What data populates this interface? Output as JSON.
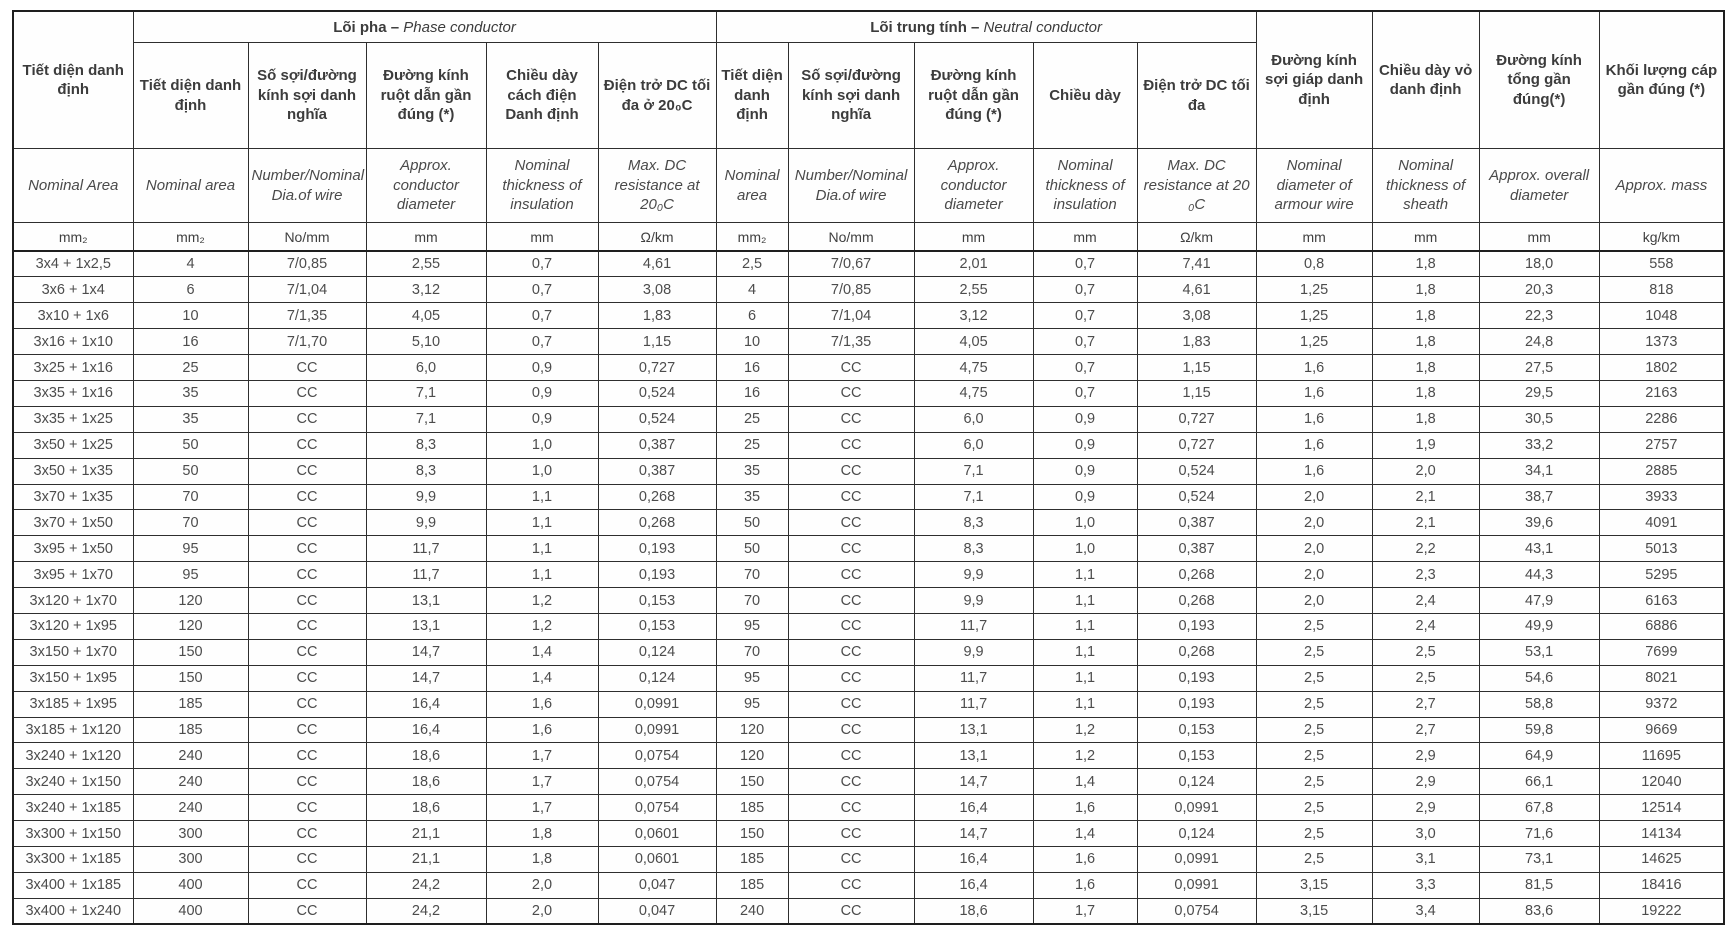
{
  "table": {
    "groups": {
      "phase_bold": "Lõi pha –",
      "phase_italic": "Phase conductor",
      "neutral_bold": "Lõi trung tính –",
      "neutral_italic": "Neutral conductor"
    },
    "columns": [
      {
        "vi": "Tiết diện danh định",
        "en": "Nominal Area",
        "unit": "mm₂"
      },
      {
        "vi": "Tiết diện danh định",
        "en": "Nominal  area",
        "unit": "mm₂"
      },
      {
        "vi": "Số sợi/đường kính sợi danh nghĩa",
        "en": "Number/Nominal Dia.of wire",
        "unit": "No/mm"
      },
      {
        "vi": "Đường kính ruột dẫn gần đúng (*)",
        "en": "Approx. conductor diameter",
        "unit": "mm"
      },
      {
        "vi": "Chiều dày cách điện Danh định",
        "en": "Nominal thickness of insulation",
        "unit": "mm"
      },
      {
        "vi": "Điện trở DC tối đa ở 20₀C",
        "en": "Max. DC resistance at 20₀C",
        "unit": "Ω/km"
      },
      {
        "vi": "Tiết diện danh định",
        "en": "Nominal area",
        "unit": "mm₂"
      },
      {
        "vi": "Số sợi/đường kính sợi danh nghĩa",
        "en": "Number/Nominal Dia.of wire",
        "unit": "No/mm"
      },
      {
        "vi": "Đường kính ruột dẫn gần đúng (*)",
        "en": "Approx. conductor diameter",
        "unit": "mm"
      },
      {
        "vi": "Chiều dày",
        "en": "Nominal thickness of insulation",
        "unit": "mm"
      },
      {
        "vi": "Điện trở DC tối đa",
        "en": "Max. DC resistance at 20 ₀C",
        "unit": "Ω/km"
      },
      {
        "vi": "Đường kính sợi giáp danh định",
        "en": "Nominal diameter of armour wire",
        "unit": "mm"
      },
      {
        "vi": "Chiều dày vỏ danh định",
        "en": "Nominal thickness of sheath",
        "unit": "mm"
      },
      {
        "vi": "Đường kính tổng gần đúng(*)",
        "en": "Approx. overall diameter",
        "unit": "mm"
      },
      {
        "vi": "Khối lượng cáp gần đúng (*)",
        "en": "Approx. mass",
        "unit": "kg/km"
      }
    ],
    "rows": [
      [
        "3x4 + 1x2,5",
        "4",
        "7/0,85",
        "2,55",
        "0,7",
        "4,61",
        "2,5",
        "7/0,67",
        "2,01",
        "0,7",
        "7,41",
        "0,8",
        "1,8",
        "18,0",
        "558"
      ],
      [
        "3x6 + 1x4",
        "6",
        "7/1,04",
        "3,12",
        "0,7",
        "3,08",
        "4",
        "7/0,85",
        "2,55",
        "0,7",
        "4,61",
        "1,25",
        "1,8",
        "20,3",
        "818"
      ],
      [
        "3x10 + 1x6",
        "10",
        "7/1,35",
        "4,05",
        "0,7",
        "1,83",
        "6",
        "7/1,04",
        "3,12",
        "0,7",
        "3,08",
        "1,25",
        "1,8",
        "22,3",
        "1048"
      ],
      [
        "3x16 + 1x10",
        "16",
        "7/1,70",
        "5,10",
        "0,7",
        "1,15",
        "10",
        "7/1,35",
        "4,05",
        "0,7",
        "1,83",
        "1,25",
        "1,8",
        "24,8",
        "1373"
      ],
      [
        "3x25 + 1x16",
        "25",
        "CC",
        "6,0",
        "0,9",
        "0,727",
        "16",
        "CC",
        "4,75",
        "0,7",
        "1,15",
        "1,6",
        "1,8",
        "27,5",
        "1802"
      ],
      [
        "3x35 + 1x16",
        "35",
        "CC",
        "7,1",
        "0,9",
        "0,524",
        "16",
        "CC",
        "4,75",
        "0,7",
        "1,15",
        "1,6",
        "1,8",
        "29,5",
        "2163"
      ],
      [
        "3x35 + 1x25",
        "35",
        "CC",
        "7,1",
        "0,9",
        "0,524",
        "25",
        "CC",
        "6,0",
        "0,9",
        "0,727",
        "1,6",
        "1,8",
        "30,5",
        "2286"
      ],
      [
        "3x50 + 1x25",
        "50",
        "CC",
        "8,3",
        "1,0",
        "0,387",
        "25",
        "CC",
        "6,0",
        "0,9",
        "0,727",
        "1,6",
        "1,9",
        "33,2",
        "2757"
      ],
      [
        "3x50 + 1x35",
        "50",
        "CC",
        "8,3",
        "1,0",
        "0,387",
        "35",
        "CC",
        "7,1",
        "0,9",
        "0,524",
        "1,6",
        "2,0",
        "34,1",
        "2885"
      ],
      [
        "3x70 + 1x35",
        "70",
        "CC",
        "9,9",
        "1,1",
        "0,268",
        "35",
        "CC",
        "7,1",
        "0,9",
        "0,524",
        "2,0",
        "2,1",
        "38,7",
        "3933"
      ],
      [
        "3x70 + 1x50",
        "70",
        "CC",
        "9,9",
        "1,1",
        "0,268",
        "50",
        "CC",
        "8,3",
        "1,0",
        "0,387",
        "2,0",
        "2,1",
        "39,6",
        "4091"
      ],
      [
        "3x95 + 1x50",
        "95",
        "CC",
        "11,7",
        "1,1",
        "0,193",
        "50",
        "CC",
        "8,3",
        "1,0",
        "0,387",
        "2,0",
        "2,2",
        "43,1",
        "5013"
      ],
      [
        "3x95 + 1x70",
        "95",
        "CC",
        "11,7",
        "1,1",
        "0,193",
        "70",
        "CC",
        "9,9",
        "1,1",
        "0,268",
        "2,0",
        "2,3",
        "44,3",
        "5295"
      ],
      [
        "3x120 + 1x70",
        "120",
        "CC",
        "13,1",
        "1,2",
        "0,153",
        "70",
        "CC",
        "9,9",
        "1,1",
        "0,268",
        "2,0",
        "2,4",
        "47,9",
        "6163"
      ],
      [
        "3x120 + 1x95",
        "120",
        "CC",
        "13,1",
        "1,2",
        "0,153",
        "95",
        "CC",
        "11,7",
        "1,1",
        "0,193",
        "2,5",
        "2,4",
        "49,9",
        "6886"
      ],
      [
        "3x150 + 1x70",
        "150",
        "CC",
        "14,7",
        "1,4",
        "0,124",
        "70",
        "CC",
        "9,9",
        "1,1",
        "0,268",
        "2,5",
        "2,5",
        "53,1",
        "7699"
      ],
      [
        "3x150 + 1x95",
        "150",
        "CC",
        "14,7",
        "1,4",
        "0,124",
        "95",
        "CC",
        "11,7",
        "1,1",
        "0,193",
        "2,5",
        "2,5",
        "54,6",
        "8021"
      ],
      [
        "3x185 + 1x95",
        "185",
        "CC",
        "16,4",
        "1,6",
        "0,0991",
        "95",
        "CC",
        "11,7",
        "1,1",
        "0,193",
        "2,5",
        "2,7",
        "58,8",
        "9372"
      ],
      [
        "3x185 + 1x120",
        "185",
        "CC",
        "16,4",
        "1,6",
        "0,0991",
        "120",
        "CC",
        "13,1",
        "1,2",
        "0,153",
        "2,5",
        "2,7",
        "59,8",
        "9669"
      ],
      [
        "3x240 + 1x120",
        "240",
        "CC",
        "18,6",
        "1,7",
        "0,0754",
        "120",
        "CC",
        "13,1",
        "1,2",
        "0,153",
        "2,5",
        "2,9",
        "64,9",
        "11695"
      ],
      [
        "3x240 + 1x150",
        "240",
        "CC",
        "18,6",
        "1,7",
        "0,0754",
        "150",
        "CC",
        "14,7",
        "1,4",
        "0,124",
        "2,5",
        "2,9",
        "66,1",
        "12040"
      ],
      [
        "3x240 + 1x185",
        "240",
        "CC",
        "18,6",
        "1,7",
        "0,0754",
        "185",
        "CC",
        "16,4",
        "1,6",
        "0,0991",
        "2,5",
        "2,9",
        "67,8",
        "12514"
      ],
      [
        "3x300 + 1x150",
        "300",
        "CC",
        "21,1",
        "1,8",
        "0,0601",
        "150",
        "CC",
        "14,7",
        "1,4",
        "0,124",
        "2,5",
        "3,0",
        "71,6",
        "14134"
      ],
      [
        "3x300 + 1x185",
        "300",
        "CC",
        "21,1",
        "1,8",
        "0,0601",
        "185",
        "CC",
        "16,4",
        "1,6",
        "0,0991",
        "2,5",
        "3,1",
        "73,1",
        "14625"
      ],
      [
        "3x400 + 1x185",
        "400",
        "CC",
        "24,2",
        "2,0",
        "0,047",
        "185",
        "CC",
        "16,4",
        "1,6",
        "0,0991",
        "3,15",
        "3,3",
        "81,5",
        "18416"
      ],
      [
        "3x400 + 1x240",
        "400",
        "CC",
        "24,2",
        "2,0",
        "0,047",
        "240",
        "CC",
        "18,6",
        "1,7",
        "0,0754",
        "3,15",
        "3,4",
        "83,6",
        "19222"
      ]
    ]
  }
}
